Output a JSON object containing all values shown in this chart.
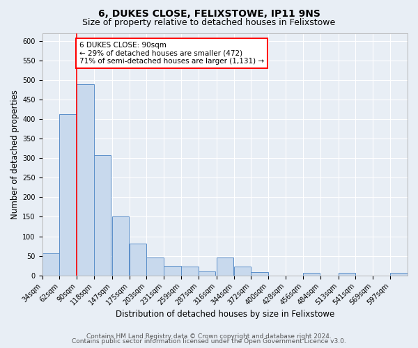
{
  "title": "6, DUKES CLOSE, FELIXSTOWE, IP11 9NS",
  "subtitle": "Size of property relative to detached houses in Felixstowe",
  "xlabel": "Distribution of detached houses by size in Felixstowe",
  "ylabel": "Number of detached properties",
  "bins": [
    34,
    62,
    90,
    118,
    147,
    175,
    203,
    231,
    259,
    287,
    316,
    344,
    372,
    400,
    428,
    456,
    484,
    513,
    541,
    569,
    597
  ],
  "bin_labels": [
    "34sqm",
    "62sqm",
    "90sqm",
    "118sqm",
    "147sqm",
    "175sqm",
    "203sqm",
    "231sqm",
    "259sqm",
    "287sqm",
    "316sqm",
    "344sqm",
    "372sqm",
    "400sqm",
    "428sqm",
    "456sqm",
    "484sqm",
    "513sqm",
    "541sqm",
    "569sqm",
    "597sqm"
  ],
  "values": [
    57,
    412,
    490,
    307,
    150,
    82,
    45,
    25,
    23,
    10,
    45,
    23,
    8,
    0,
    0,
    6,
    0,
    6,
    0,
    0,
    6
  ],
  "bar_color": "#c8d9ed",
  "bar_edge_color": "#5b8fc9",
  "property_line_x": 90,
  "property_line_color": "red",
  "annotation_text": "6 DUKES CLOSE: 90sqm\n← 29% of detached houses are smaller (472)\n71% of semi-detached houses are larger (1,131) →",
  "annotation_box_color": "white",
  "annotation_box_edge": "red",
  "ylim": [
    0,
    620
  ],
  "yticks": [
    0,
    50,
    100,
    150,
    200,
    250,
    300,
    350,
    400,
    450,
    500,
    550,
    600
  ],
  "footer1": "Contains HM Land Registry data © Crown copyright and database right 2024.",
  "footer2": "Contains public sector information licensed under the Open Government Licence v3.0.",
  "background_color": "#e8eef5",
  "plot_bg_color": "#e8eef5",
  "title_fontsize": 10,
  "subtitle_fontsize": 9,
  "axis_label_fontsize": 8.5,
  "tick_label_fontsize": 7,
  "footer_fontsize": 6.5,
  "annot_fontsize": 7.5
}
